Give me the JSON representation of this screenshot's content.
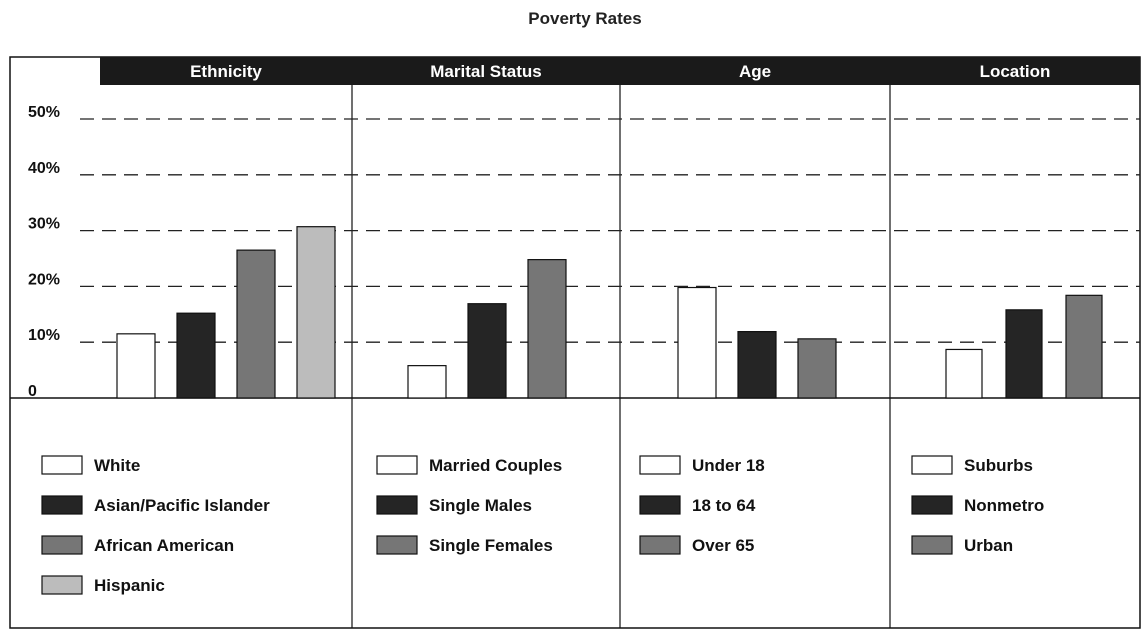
{
  "chart_data": {
    "type": "bar",
    "title": "Poverty Rates",
    "y_ticks": [
      "50%",
      "40%",
      "30%",
      "20%",
      "10%",
      "0"
    ],
    "ylim": [
      0,
      50
    ],
    "grid": "dashed horizontal",
    "legend_placement": "below each panel",
    "panels": [
      {
        "title": "Ethnicity",
        "categories": [
          "White",
          "Asian/Pacific Islander",
          "African American",
          "Hispanic"
        ],
        "values": [
          11.5,
          15.2,
          26.5,
          30.7
        ],
        "colors": [
          "#ffffff",
          "#252525",
          "#767676",
          "#bcbcbc"
        ]
      },
      {
        "title": "Marital Status",
        "categories": [
          "Married Couples",
          "Single Males",
          "Single Females"
        ],
        "values": [
          5.8,
          16.9,
          24.8
        ],
        "colors": [
          "#ffffff",
          "#252525",
          "#767676"
        ]
      },
      {
        "title": "Age",
        "categories": [
          "Under 18",
          "18 to 64",
          "Over 65"
        ],
        "values": [
          19.8,
          11.9,
          10.6
        ],
        "colors": [
          "#ffffff",
          "#252525",
          "#767676"
        ]
      },
      {
        "title": "Location",
        "categories": [
          "Suburbs",
          "Nonmetro",
          "Urban"
        ],
        "values": [
          8.7,
          15.8,
          18.4
        ],
        "colors": [
          "#ffffff",
          "#252525",
          "#767676"
        ]
      }
    ]
  }
}
